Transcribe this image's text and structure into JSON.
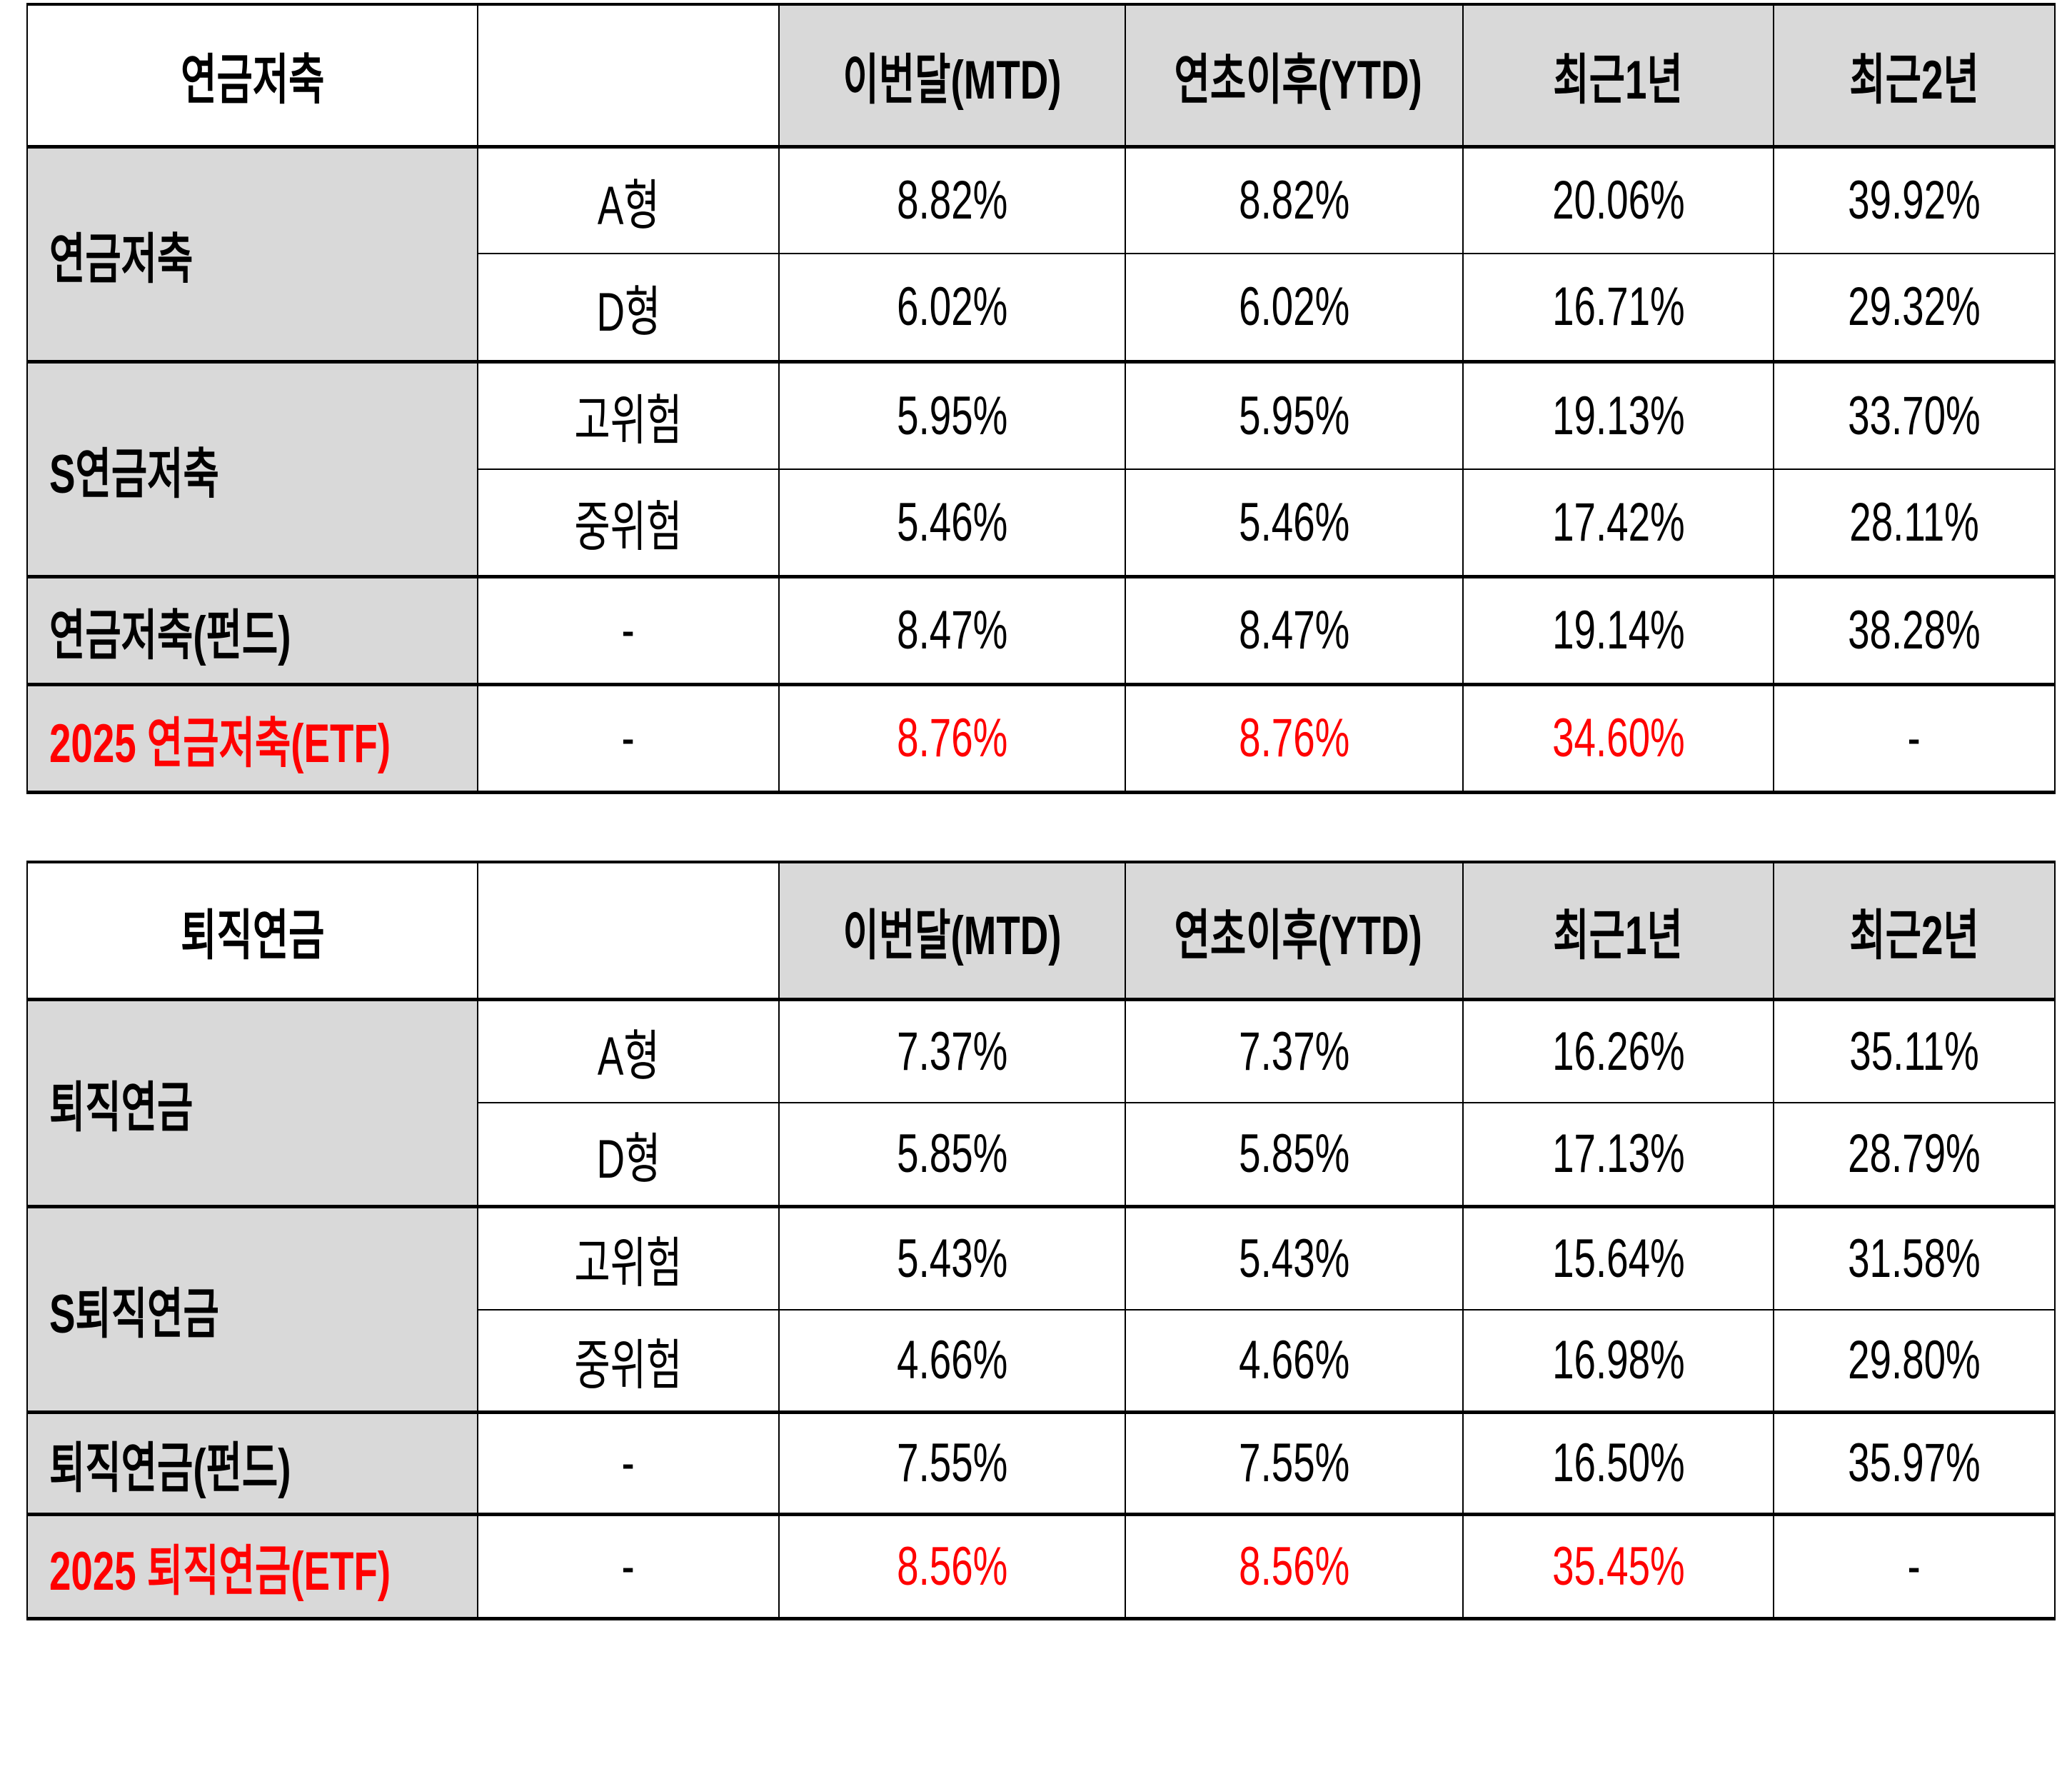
{
  "colors": {
    "header_bg": "#d9d9d9",
    "highlight": "#ff0000"
  },
  "tables": [
    {
      "title": "연금저축",
      "headers": [
        "이번달(MTD)",
        "연초이후(YTD)",
        "최근1년",
        "최근2년"
      ],
      "groups": [
        {
          "name": "연금저축",
          "rows": [
            {
              "sub": "A형",
              "values": [
                "8.82%",
                "8.82%",
                "20.06%",
                "39.92%"
              ]
            },
            {
              "sub": "D형",
              "values": [
                "6.02%",
                "6.02%",
                "16.71%",
                "29.32%"
              ]
            }
          ]
        },
        {
          "name": "S연금저축",
          "rows": [
            {
              "sub": "고위험",
              "values": [
                "5.95%",
                "5.95%",
                "19.13%",
                "33.70%"
              ]
            },
            {
              "sub": "중위험",
              "values": [
                "5.46%",
                "5.46%",
                "17.42%",
                "28.11%"
              ]
            }
          ]
        },
        {
          "name": "연금저축(펀드)",
          "rows": [
            {
              "sub": "-",
              "values": [
                "8.47%",
                "8.47%",
                "19.14%",
                "38.28%"
              ]
            }
          ]
        },
        {
          "name": "2025  연금저축(ETF)",
          "highlight": true,
          "rows": [
            {
              "sub": "-",
              "values": [
                "8.76%",
                "8.76%",
                "34.60%",
                "-"
              ]
            }
          ]
        }
      ]
    },
    {
      "title": "퇴직연금",
      "headers": [
        "이번달(MTD)",
        "연초이후(YTD)",
        "최근1년",
        "최근2년"
      ],
      "groups": [
        {
          "name": "퇴직연금",
          "rows": [
            {
              "sub": "A형",
              "values": [
                "7.37%",
                "7.37%",
                "16.26%",
                "35.11%"
              ]
            },
            {
              "sub": "D형",
              "values": [
                "5.85%",
                "5.85%",
                "17.13%",
                "28.79%"
              ]
            }
          ]
        },
        {
          "name": "S퇴직연금",
          "rows": [
            {
              "sub": "고위험",
              "values": [
                "5.43%",
                "5.43%",
                "15.64%",
                "31.58%"
              ]
            },
            {
              "sub": "중위험",
              "values": [
                "4.66%",
                "4.66%",
                "16.98%",
                "29.80%"
              ]
            }
          ]
        },
        {
          "name": "퇴직연금(펀드)",
          "rows": [
            {
              "sub": "-",
              "values": [
                "7.55%",
                "7.55%",
                "16.50%",
                "35.97%"
              ]
            }
          ]
        },
        {
          "name": "2025  퇴직연금(ETF)",
          "highlight": true,
          "rows": [
            {
              "sub": "-",
              "values": [
                "8.56%",
                "8.56%",
                "35.45%",
                "-"
              ]
            }
          ]
        }
      ]
    }
  ]
}
